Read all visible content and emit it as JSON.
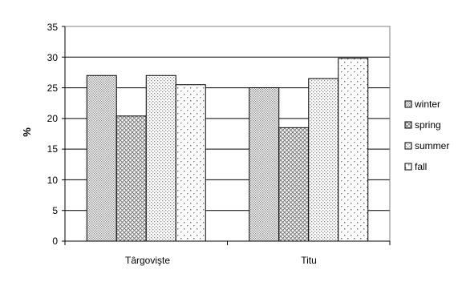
{
  "chart_data": {
    "type": "bar",
    "title": "",
    "xlabel": "",
    "ylabel": "%",
    "ylim": [
      0,
      35
    ],
    "yticks": [
      0,
      5,
      10,
      15,
      20,
      25,
      30,
      35
    ],
    "grid": true,
    "legend_position": "right",
    "categories": [
      "Târgovişte",
      "Titu"
    ],
    "series": [
      {
        "name": "winter",
        "pattern": "fine-dots",
        "values": [
          27,
          25
        ]
      },
      {
        "name": "spring",
        "pattern": "crosshatch",
        "values": [
          20.4,
          18.5
        ]
      },
      {
        "name": "summer",
        "pattern": "medium-dots",
        "values": [
          27,
          26.5
        ]
      },
      {
        "name": "fall",
        "pattern": "sparse-dots",
        "values": [
          25.5,
          29.8
        ]
      }
    ]
  },
  "colors": {
    "background": "#ffffff",
    "axis": "#000000",
    "gridline": "#000000",
    "bar_stroke": "#000000",
    "pattern_ink": "#8a8a8a"
  }
}
